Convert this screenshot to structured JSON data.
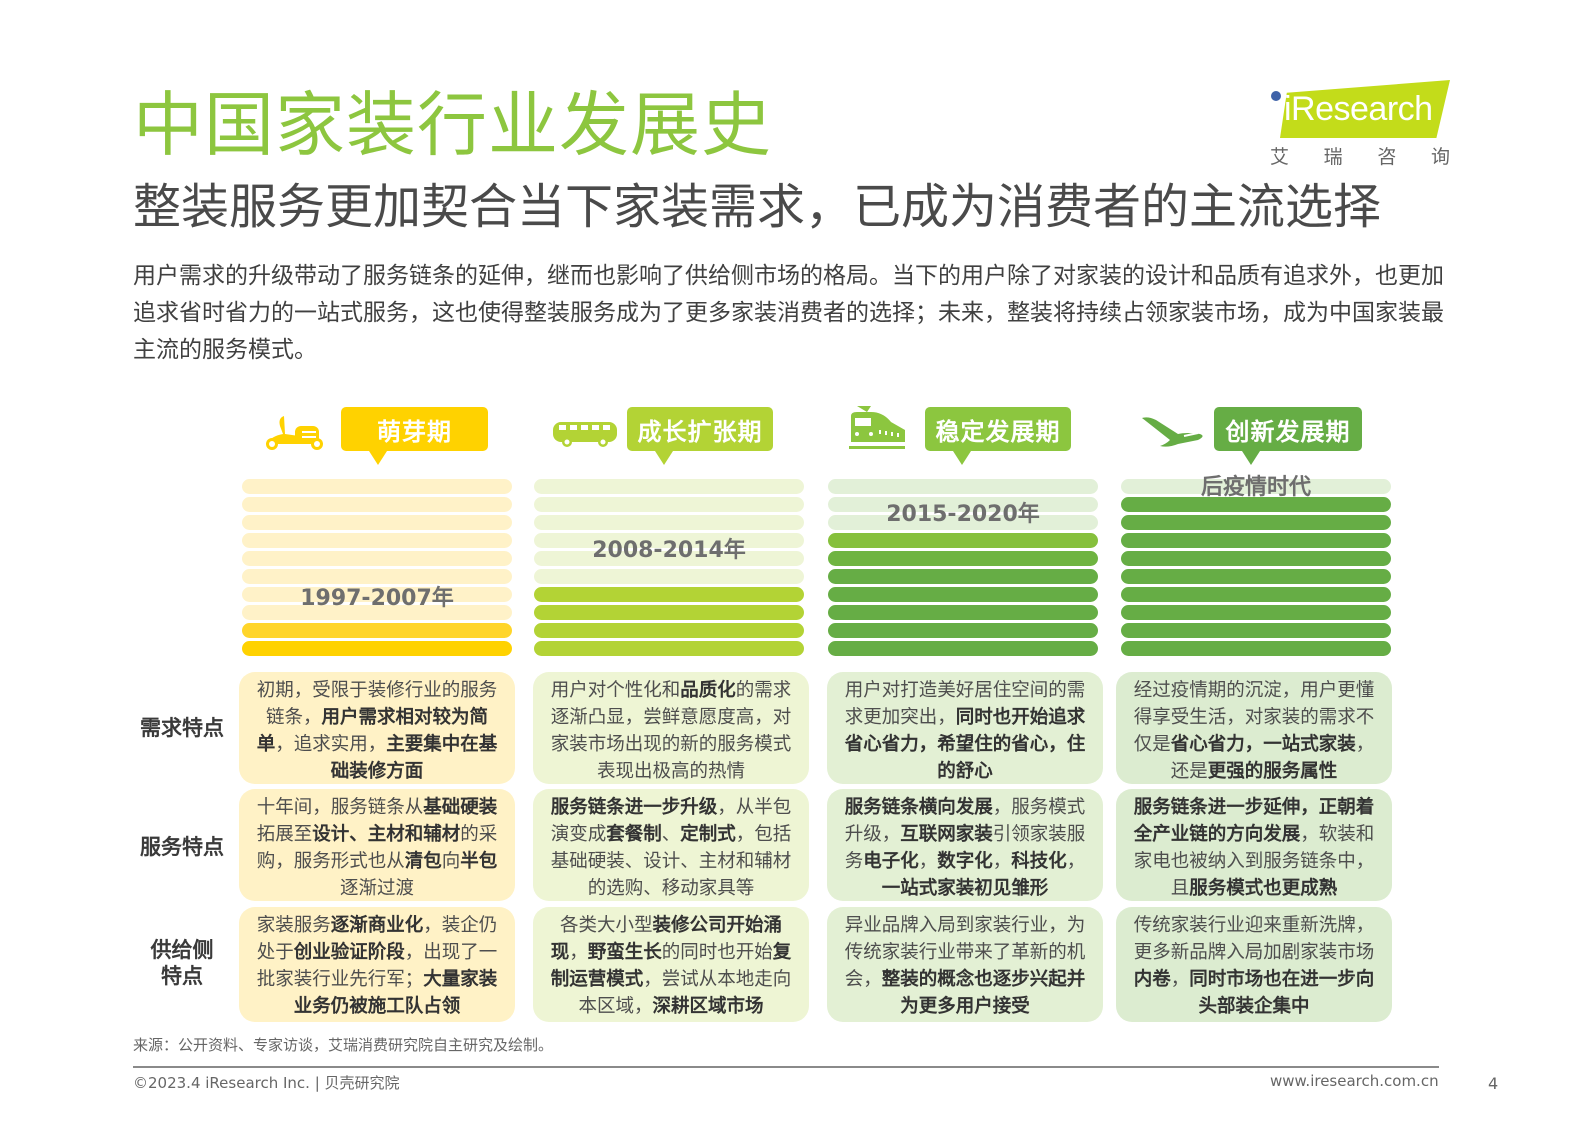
{
  "header": {
    "title": "中国家装行业发展史",
    "subtitle": "整装服务更加契合当下家装需求，已成为消费者的主流选择",
    "description": "用户需求的升级带动了服务链条的延伸，继而也影响了供给侧市场的格局。当下的用户除了对家装的设计和品质有追求外，也更加追求省时省力的一站式服务，这也使得整装服务成为了更多家装消费者的选择；未来，整装将持续占领家装市场，成为中国家装最主流的服务模式。"
  },
  "logo": {
    "text": "iResearch",
    "cn_chars": [
      "艾",
      "瑞",
      "咨",
      "询"
    ]
  },
  "colors": {
    "title_green": "#8dc63f",
    "stage1": "#ffd200",
    "stage2": "#b3d335",
    "stage3": "#8cc63f",
    "stage4": "#66ad45"
  },
  "stages": [
    {
      "icon": "scooter-icon",
      "label": "萌芽期",
      "period": "1997-2007年",
      "filled_bars": 2
    },
    {
      "icon": "bus-icon",
      "label": "成长扩张期",
      "period": "2008-2014年",
      "filled_bars": 4
    },
    {
      "icon": "train-icon",
      "label": "稳定发展期",
      "period": "2015-2020年",
      "filled_bars": 7
    },
    {
      "icon": "airplane-icon",
      "label": "创新发展期",
      "period": "后疫情时代",
      "filled_bars": 9
    }
  ],
  "row_labels": {
    "demand": "需求特点",
    "service": "服务特点",
    "supply_1": "供给侧",
    "supply_2": "特点"
  },
  "cells": {
    "demand": [
      [
        [
          "初期，受限于装修行业的服务链条，",
          false
        ],
        [
          "用户需求相对较为简单",
          true
        ],
        [
          "，追求实用，",
          false
        ],
        [
          "主要集中在基础装修方面",
          true
        ]
      ],
      [
        [
          "用户对个性化和",
          false
        ],
        [
          "品质化",
          true
        ],
        [
          "的需求逐渐凸显，尝鲜意愿度高，对家装市场出现的新的服务模式表现出极高的热情",
          false
        ]
      ],
      [
        [
          "用户对打造美好居住空间的需求更加突出，",
          false
        ],
        [
          "同时也开始追求省心省力，希望住的省心，住的舒心",
          true
        ]
      ],
      [
        [
          "经过疫情期的沉淀，用户更懂得享受生活，对家装的需求不仅是",
          false
        ],
        [
          "省心省力，一站式家装",
          true
        ],
        [
          "，还是",
          false
        ],
        [
          "更强的服务属性",
          true
        ]
      ]
    ],
    "service": [
      [
        [
          "十年间，服务链条从",
          false
        ],
        [
          "基础硬装",
          true
        ],
        [
          "拓展至",
          false
        ],
        [
          "设计、主材和辅材",
          true
        ],
        [
          "的采购，服务形式也从",
          false
        ],
        [
          "清包",
          true
        ],
        [
          "向",
          false
        ],
        [
          "半包",
          true
        ],
        [
          "逐渐过渡",
          false
        ]
      ],
      [
        [
          "服务链条进一步升级",
          true
        ],
        [
          "，从半包演变成",
          false
        ],
        [
          "套餐制",
          true
        ],
        [
          "、",
          false
        ],
        [
          "定制式",
          true
        ],
        [
          "，包括基础硬装、设计、主材和辅材的选购、移动家具等",
          false
        ]
      ],
      [
        [
          "服务链条横向发展",
          true
        ],
        [
          "，服务模式升级，",
          false
        ],
        [
          "互联网家装",
          true
        ],
        [
          "引领家装服务",
          false
        ],
        [
          "电子化",
          true
        ],
        [
          "，",
          false
        ],
        [
          "数字化",
          true
        ],
        [
          "，",
          false
        ],
        [
          "科技化",
          true
        ],
        [
          "，",
          false
        ],
        [
          "一站式家装初见雏形",
          true
        ]
      ],
      [
        [
          "服务链条进一步延伸，正朝着全产业链的方向发展",
          true
        ],
        [
          "，软装和家电也被纳入到服务链条中，且",
          false
        ],
        [
          "服务模式也更成熟",
          true
        ]
      ]
    ],
    "supply": [
      [
        [
          "家装服务",
          false
        ],
        [
          "逐渐商业化",
          true
        ],
        [
          "，装企仍处于",
          false
        ],
        [
          "创业验证阶段",
          true
        ],
        [
          "，出现了一批家装行业先行军；",
          false
        ],
        [
          "大量家装业务仍被施工队占领",
          true
        ]
      ],
      [
        [
          "各类大小型",
          false
        ],
        [
          "装修公司开始涌现",
          true
        ],
        [
          "，",
          false
        ],
        [
          "野蛮生长",
          true
        ],
        [
          "的同时也开始",
          false
        ],
        [
          "复制运营模式",
          true
        ],
        [
          "，尝试从本地走向本区域，",
          false
        ],
        [
          "深耕区域市场",
          true
        ]
      ],
      [
        [
          "异业品牌入局到家装行业，为传统家装行业带来了革新的机会，",
          false
        ],
        [
          "整装的概念也逐步兴起并为更多用户接受",
          true
        ]
      ],
      [
        [
          "传统家装行业迎来重新洗牌，更多新品牌入局加剧家装市场",
          false
        ],
        [
          "内卷",
          true
        ],
        [
          "，",
          false
        ],
        [
          "同时市场也在进一步向头部装企集中",
          true
        ]
      ]
    ]
  },
  "footer": {
    "source": "来源：公开资料、专家访谈，艾瑞消费研究院自主研究及绘制。",
    "copyright": "©2023.4 iResearch Inc. | 贝壳研究院",
    "website": "www.iresearch.com.cn",
    "page_number": "4"
  }
}
